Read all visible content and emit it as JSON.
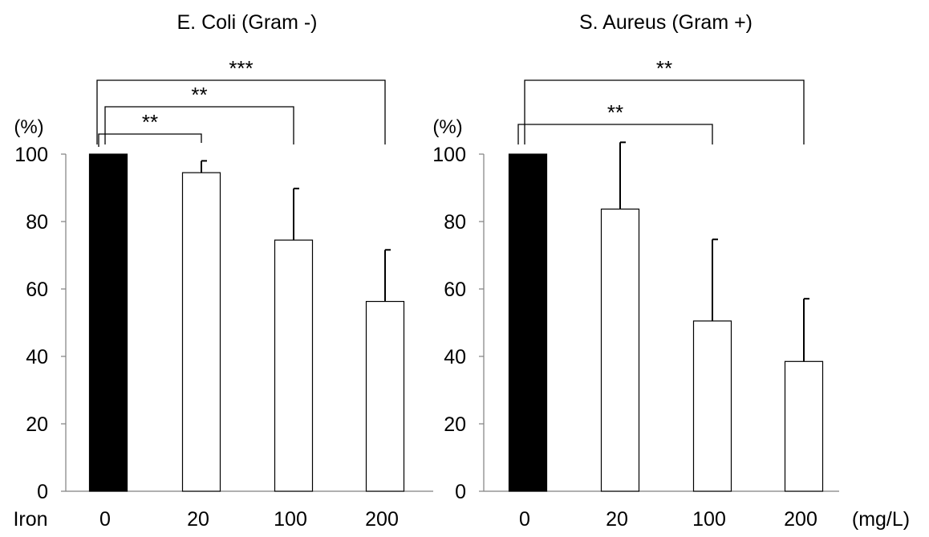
{
  "chart_data": [
    {
      "type": "bar",
      "title": "E. Coli (Gram -)",
      "ylabel": "(%)",
      "xlabel": "Iron",
      "ylim": [
        0,
        100
      ],
      "yticks": [
        0,
        20,
        40,
        60,
        80,
        100
      ],
      "categories": [
        "0",
        "20",
        "100",
        "200"
      ],
      "values": [
        100,
        94.5,
        74.5,
        56.3
      ],
      "errors": [
        0,
        3.5,
        15.3,
        15.3
      ],
      "bar_colors": [
        "#000000",
        "#ffffff",
        "#ffffff",
        "#ffffff"
      ],
      "grid": false,
      "significance": [
        {
          "from": 0,
          "to": 1,
          "label": "**"
        },
        {
          "from": 0,
          "to": 2,
          "label": "**"
        },
        {
          "from": 0,
          "to": 3,
          "label": "***"
        }
      ]
    },
    {
      "type": "bar",
      "title": "S. Aureus (Gram +)",
      "ylabel": "(%)",
      "xlabel": "(mg/L)",
      "ylim": [
        0,
        100
      ],
      "yticks": [
        0,
        20,
        40,
        60,
        80,
        100
      ],
      "categories": [
        "0",
        "20",
        "100",
        "200"
      ],
      "values": [
        100,
        83.7,
        50.5,
        38.5
      ],
      "errors": [
        0,
        19.8,
        24.2,
        18.6
      ],
      "bar_colors": [
        "#000000",
        "#ffffff",
        "#ffffff",
        "#ffffff"
      ],
      "grid": false,
      "significance": [
        {
          "from": 0,
          "to": 2,
          "label": "**"
        },
        {
          "from": 0,
          "to": 3,
          "label": "**"
        }
      ]
    }
  ]
}
